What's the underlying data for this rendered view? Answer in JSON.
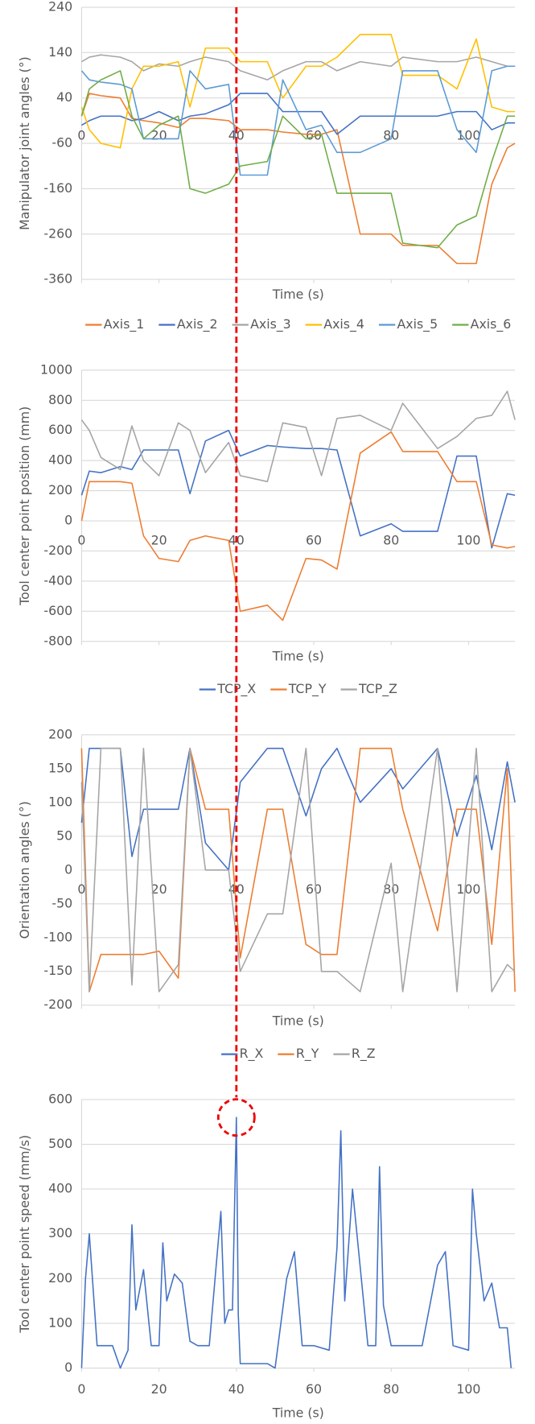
{
  "chart_data": [
    {
      "type": "line",
      "y_label": "Manipulator joint angles (°)",
      "x_label": "Time (s)",
      "legend": "bottom",
      "grid": true,
      "xlim": [
        0,
        112
      ],
      "xticks": [
        0,
        20,
        40,
        60,
        80,
        100
      ],
      "ylim": [
        -360,
        240
      ],
      "yticks": [
        -360,
        -260,
        -160,
        -60,
        40,
        140,
        240
      ],
      "x": [
        0,
        2,
        5,
        10,
        13,
        16,
        20,
        25,
        28,
        32,
        38,
        41,
        48,
        52,
        58,
        62,
        66,
        72,
        80,
        83,
        92,
        97,
        102,
        106,
        110,
        112
      ],
      "series": [
        {
          "name": "Axis_1",
          "color": "#ed7d31",
          "values": [
            0,
            50,
            45,
            40,
            -5,
            -10,
            -15,
            -25,
            -5,
            -5,
            -10,
            -30,
            -30,
            -35,
            -40,
            -40,
            -30,
            -260,
            -260,
            -285,
            -285,
            -325,
            -325,
            -150,
            -70,
            -60
          ]
        },
        {
          "name": "Axis_2",
          "color": "#4472c4",
          "values": [
            -20,
            -10,
            0,
            0,
            -10,
            -5,
            10,
            -10,
            0,
            5,
            25,
            50,
            50,
            10,
            10,
            10,
            -40,
            0,
            0,
            0,
            0,
            10,
            10,
            -30,
            -15,
            -15
          ]
        },
        {
          "name": "Axis_3",
          "color": "#a5a5a5",
          "values": [
            120,
            130,
            135,
            130,
            120,
            100,
            115,
            110,
            120,
            130,
            120,
            100,
            80,
            100,
            120,
            120,
            100,
            120,
            110,
            130,
            120,
            120,
            130,
            120,
            110,
            110
          ]
        },
        {
          "name": "Axis_4",
          "color": "#ffc000",
          "values": [
            20,
            -30,
            -60,
            -70,
            60,
            110,
            110,
            120,
            20,
            150,
            150,
            120,
            120,
            40,
            110,
            110,
            130,
            180,
            180,
            90,
            90,
            60,
            170,
            20,
            10,
            10
          ]
        },
        {
          "name": "Axis_5",
          "color": "#5b9bd5",
          "values": [
            100,
            80,
            75,
            70,
            60,
            -50,
            -50,
            -50,
            100,
            60,
            70,
            -130,
            -130,
            80,
            -30,
            -20,
            -80,
            -80,
            -50,
            100,
            100,
            -30,
            -80,
            100,
            110,
            110
          ]
        },
        {
          "name": "Axis_6",
          "color": "#70ad47",
          "values": [
            0,
            60,
            80,
            100,
            0,
            -50,
            -20,
            0,
            -160,
            -170,
            -150,
            -110,
            -100,
            0,
            -50,
            -40,
            -170,
            -170,
            -170,
            -280,
            -290,
            -240,
            -220,
            -100,
            0,
            0
          ]
        }
      ]
    },
    {
      "type": "line",
      "y_label": "Tool center point position (mm)",
      "x_label": "Time (s)",
      "legend": "bottom",
      "grid": true,
      "xlim": [
        0,
        112
      ],
      "xticks": [
        0,
        20,
        40,
        60,
        80,
        100
      ],
      "ylim": [
        -800,
        1000
      ],
      "yticks": [
        -800,
        -600,
        -400,
        -200,
        0,
        200,
        400,
        600,
        800,
        1000
      ],
      "x": [
        0,
        2,
        5,
        10,
        13,
        16,
        20,
        25,
        28,
        32,
        38,
        41,
        48,
        52,
        58,
        62,
        66,
        72,
        80,
        83,
        92,
        97,
        102,
        106,
        110,
        112
      ],
      "series": [
        {
          "name": "TCP_X",
          "color": "#4472c4",
          "values": [
            170,
            330,
            320,
            360,
            340,
            470,
            470,
            470,
            180,
            530,
            600,
            430,
            500,
            490,
            480,
            480,
            470,
            -100,
            -20,
            -70,
            -70,
            430,
            430,
            -180,
            180,
            170
          ]
        },
        {
          "name": "TCP_Y",
          "color": "#ed7d31",
          "values": [
            0,
            260,
            260,
            260,
            250,
            -100,
            -250,
            -270,
            -130,
            -100,
            -130,
            -600,
            -560,
            -660,
            -250,
            -260,
            -320,
            450,
            590,
            460,
            460,
            260,
            260,
            -160,
            -180,
            -170
          ]
        },
        {
          "name": "TCP_Z",
          "color": "#a5a5a5",
          "values": [
            670,
            600,
            420,
            340,
            630,
            400,
            300,
            650,
            600,
            320,
            520,
            300,
            260,
            650,
            620,
            300,
            680,
            700,
            600,
            780,
            480,
            560,
            680,
            700,
            860,
            670
          ]
        }
      ]
    },
    {
      "type": "line",
      "y_label": "Orientation angles (°)",
      "x_label": "Time (s)",
      "legend": "bottom",
      "grid": true,
      "xlim": [
        0,
        112
      ],
      "xticks": [
        0,
        20,
        40,
        60,
        80,
        100
      ],
      "ylim": [
        -200,
        200
      ],
      "yticks": [
        -200,
        -150,
        -100,
        -50,
        0,
        50,
        100,
        150,
        200
      ],
      "x": [
        0,
        2,
        5,
        10,
        13,
        16,
        20,
        25,
        28,
        32,
        38,
        41,
        48,
        52,
        58,
        62,
        66,
        72,
        80,
        83,
        92,
        97,
        102,
        106,
        110,
        112
      ],
      "series": [
        {
          "name": "R_X",
          "color": "#4472c4",
          "values": [
            70,
            180,
            180,
            180,
            20,
            90,
            90,
            90,
            180,
            40,
            0,
            130,
            180,
            180,
            80,
            150,
            180,
            100,
            150,
            120,
            180,
            50,
            140,
            30,
            160,
            100
          ]
        },
        {
          "name": "R_Y",
          "color": "#ed7d31",
          "values": [
            180,
            -180,
            -125,
            -125,
            -125,
            -125,
            -120,
            -160,
            180,
            90,
            90,
            -130,
            90,
            90,
            -110,
            -125,
            -125,
            180,
            180,
            90,
            -90,
            90,
            90,
            -110,
            150,
            -180
          ]
        },
        {
          "name": "R_Z",
          "color": "#a5a5a5",
          "values": [
            130,
            -180,
            180,
            180,
            -170,
            180,
            -180,
            -140,
            180,
            0,
            0,
            -150,
            -65,
            -65,
            180,
            -150,
            -150,
            -180,
            10,
            -180,
            180,
            -180,
            180,
            -180,
            -140,
            -150
          ]
        }
      ]
    },
    {
      "type": "line",
      "y_label": "Tool center point speed (mm/s)",
      "x_label": "Time (s)",
      "grid": true,
      "marker_x": 40,
      "xlim": [
        0,
        112
      ],
      "xticks": [
        0,
        20,
        40,
        60,
        80,
        100
      ],
      "ylim": [
        0,
        600
      ],
      "yticks": [
        0,
        100,
        200,
        300,
        400,
        500,
        600
      ],
      "x": [
        0,
        1,
        2,
        4,
        8,
        10,
        12,
        13,
        14,
        16,
        18,
        20,
        21,
        22,
        24,
        26,
        28,
        30,
        33,
        36,
        37,
        38,
        39,
        40,
        40.5,
        41,
        44,
        48,
        50,
        53,
        55,
        57,
        60,
        64,
        66,
        67,
        68,
        70,
        74,
        76,
        77,
        78,
        80,
        84,
        88,
        92,
        94,
        96,
        100,
        101,
        102,
        104,
        106,
        108,
        110,
        111
      ],
      "series": [
        {
          "color": "#4472c4",
          "values": [
            0,
            200,
            300,
            50,
            50,
            0,
            40,
            320,
            130,
            220,
            50,
            50,
            280,
            150,
            210,
            190,
            60,
            50,
            50,
            350,
            100,
            130,
            130,
            560,
            120,
            10,
            10,
            10,
            0,
            200,
            260,
            50,
            50,
            40,
            270,
            530,
            150,
            400,
            50,
            50,
            450,
            140,
            50,
            50,
            50,
            230,
            260,
            50,
            40,
            400,
            300,
            150,
            190,
            90,
            90,
            0
          ]
        }
      ]
    }
  ]
}
